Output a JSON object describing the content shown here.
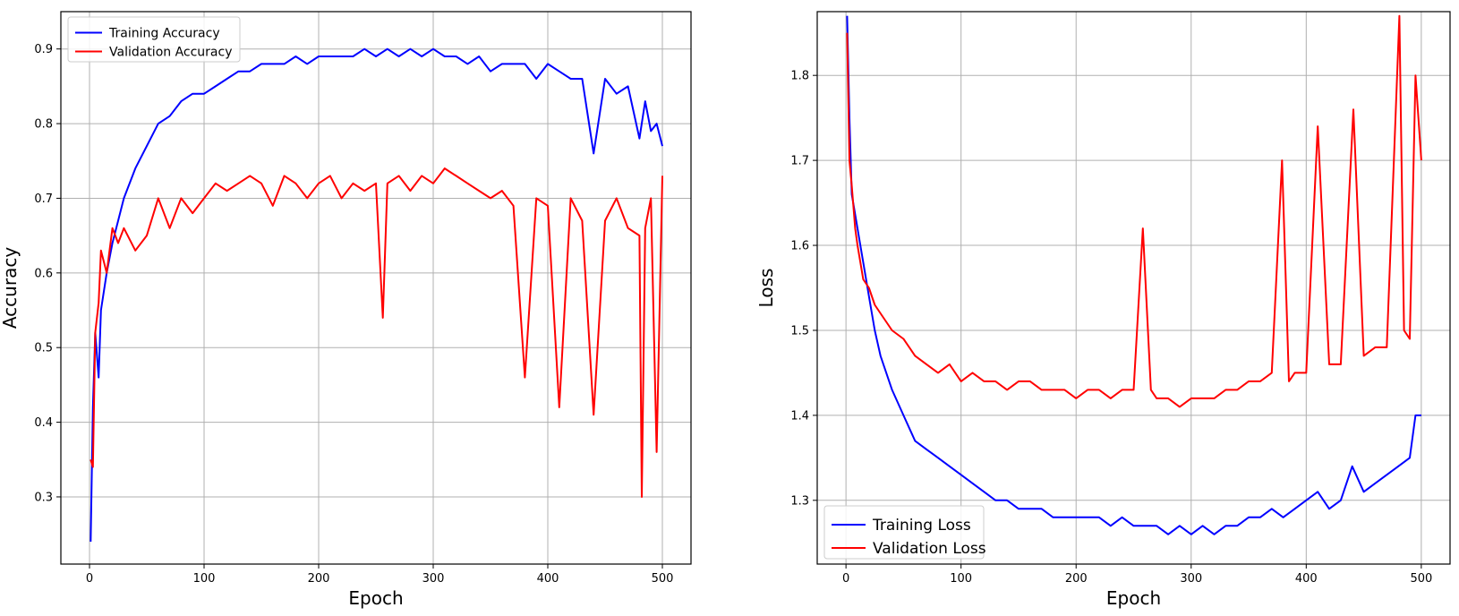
{
  "chart_data": [
    {
      "type": "line",
      "title": "",
      "xlabel": "Epoch",
      "ylabel": "Accuracy",
      "xlim": [
        -25,
        525
      ],
      "ylim": [
        0.21,
        0.95
      ],
      "xticks": [
        0,
        100,
        200,
        300,
        400,
        500
      ],
      "yticks": [
        0.3,
        0.4,
        0.5,
        0.6,
        0.7,
        0.8,
        0.9
      ],
      "grid": true,
      "legend": "upper-left",
      "series": [
        {
          "name": "Training Accuracy",
          "color": "#0000ff",
          "x": [
            1,
            3,
            5,
            8,
            10,
            15,
            20,
            25,
            30,
            40,
            50,
            60,
            70,
            80,
            90,
            100,
            110,
            120,
            130,
            140,
            150,
            160,
            170,
            180,
            190,
            200,
            210,
            220,
            230,
            240,
            250,
            260,
            270,
            280,
            290,
            300,
            310,
            320,
            330,
            340,
            350,
            360,
            370,
            380,
            390,
            400,
            410,
            420,
            430,
            440,
            450,
            460,
            470,
            480,
            485,
            490,
            495,
            500
          ],
          "y": [
            0.24,
            0.42,
            0.52,
            0.46,
            0.55,
            0.6,
            0.64,
            0.67,
            0.7,
            0.74,
            0.77,
            0.8,
            0.81,
            0.83,
            0.84,
            0.84,
            0.85,
            0.86,
            0.87,
            0.87,
            0.88,
            0.88,
            0.88,
            0.89,
            0.88,
            0.89,
            0.89,
            0.89,
            0.89,
            0.9,
            0.89,
            0.9,
            0.89,
            0.9,
            0.89,
            0.9,
            0.89,
            0.89,
            0.88,
            0.89,
            0.87,
            0.88,
            0.88,
            0.88,
            0.86,
            0.88,
            0.87,
            0.86,
            0.86,
            0.76,
            0.86,
            0.84,
            0.85,
            0.78,
            0.83,
            0.79,
            0.8,
            0.77
          ]
        },
        {
          "name": "Validation Accuracy",
          "color": "#ff0000",
          "x": [
            1,
            3,
            5,
            8,
            10,
            15,
            20,
            25,
            30,
            40,
            50,
            60,
            70,
            80,
            90,
            100,
            110,
            120,
            130,
            140,
            150,
            160,
            170,
            180,
            190,
            200,
            210,
            220,
            230,
            240,
            250,
            256,
            260,
            270,
            280,
            290,
            300,
            310,
            320,
            330,
            340,
            350,
            360,
            370,
            380,
            390,
            400,
            410,
            420,
            430,
            440,
            450,
            460,
            470,
            480,
            482,
            485,
            490,
            495,
            500
          ],
          "y": [
            0.35,
            0.34,
            0.52,
            0.56,
            0.63,
            0.6,
            0.66,
            0.64,
            0.66,
            0.63,
            0.65,
            0.7,
            0.66,
            0.7,
            0.68,
            0.7,
            0.72,
            0.71,
            0.72,
            0.73,
            0.72,
            0.69,
            0.73,
            0.72,
            0.7,
            0.72,
            0.73,
            0.7,
            0.72,
            0.71,
            0.72,
            0.54,
            0.72,
            0.73,
            0.71,
            0.73,
            0.72,
            0.74,
            0.73,
            0.72,
            0.71,
            0.7,
            0.71,
            0.69,
            0.46,
            0.7,
            0.69,
            0.42,
            0.7,
            0.67,
            0.41,
            0.67,
            0.7,
            0.66,
            0.65,
            0.3,
            0.66,
            0.7,
            0.36,
            0.73
          ]
        }
      ]
    },
    {
      "type": "line",
      "title": "",
      "xlabel": "Epoch",
      "ylabel": "Loss",
      "xlim": [
        -25,
        525
      ],
      "ylim": [
        1.225,
        1.875
      ],
      "xticks": [
        0,
        100,
        200,
        300,
        400,
        500
      ],
      "yticks": [
        1.3,
        1.4,
        1.5,
        1.6,
        1.7,
        1.8
      ],
      "grid": true,
      "legend": "lower-left",
      "series": [
        {
          "name": "Training Loss",
          "color": "#0000ff",
          "x": [
            1,
            3,
            5,
            10,
            15,
            20,
            25,
            30,
            40,
            50,
            60,
            70,
            80,
            90,
            100,
            110,
            120,
            130,
            140,
            150,
            160,
            170,
            180,
            190,
            200,
            210,
            220,
            230,
            240,
            250,
            260,
            270,
            280,
            290,
            300,
            310,
            320,
            330,
            340,
            350,
            360,
            370,
            380,
            390,
            400,
            410,
            420,
            430,
            440,
            450,
            460,
            470,
            480,
            490,
            495,
            500
          ],
          "y": [
            1.87,
            1.75,
            1.66,
            1.62,
            1.58,
            1.54,
            1.5,
            1.47,
            1.43,
            1.4,
            1.37,
            1.36,
            1.35,
            1.34,
            1.33,
            1.32,
            1.31,
            1.3,
            1.3,
            1.29,
            1.29,
            1.29,
            1.28,
            1.28,
            1.28,
            1.28,
            1.28,
            1.27,
            1.28,
            1.27,
            1.27,
            1.27,
            1.26,
            1.27,
            1.26,
            1.27,
            1.26,
            1.27,
            1.27,
            1.28,
            1.28,
            1.29,
            1.28,
            1.29,
            1.3,
            1.31,
            1.29,
            1.3,
            1.34,
            1.31,
            1.32,
            1.33,
            1.34,
            1.35,
            1.4,
            1.4
          ]
        },
        {
          "name": "Validation Loss",
          "color": "#ff0000",
          "x": [
            1,
            3,
            5,
            8,
            10,
            15,
            20,
            25,
            30,
            40,
            50,
            60,
            70,
            80,
            90,
            100,
            110,
            120,
            130,
            140,
            150,
            160,
            170,
            180,
            190,
            200,
            210,
            220,
            230,
            240,
            250,
            258,
            265,
            270,
            280,
            290,
            300,
            310,
            320,
            330,
            340,
            350,
            360,
            370,
            379,
            385,
            390,
            400,
            410,
            420,
            430,
            441,
            450,
            460,
            470,
            481,
            485,
            490,
            495,
            500
          ],
          "y": [
            1.85,
            1.7,
            1.67,
            1.62,
            1.6,
            1.56,
            1.55,
            1.53,
            1.52,
            1.5,
            1.49,
            1.47,
            1.46,
            1.45,
            1.46,
            1.44,
            1.45,
            1.44,
            1.44,
            1.43,
            1.44,
            1.44,
            1.43,
            1.43,
            1.43,
            1.42,
            1.43,
            1.43,
            1.42,
            1.43,
            1.43,
            1.62,
            1.43,
            1.42,
            1.42,
            1.41,
            1.42,
            1.42,
            1.42,
            1.43,
            1.43,
            1.44,
            1.44,
            1.45,
            1.7,
            1.44,
            1.45,
            1.45,
            1.74,
            1.46,
            1.46,
            1.76,
            1.47,
            1.48,
            1.48,
            1.87,
            1.5,
            1.49,
            1.8,
            1.7
          ]
        }
      ]
    }
  ]
}
